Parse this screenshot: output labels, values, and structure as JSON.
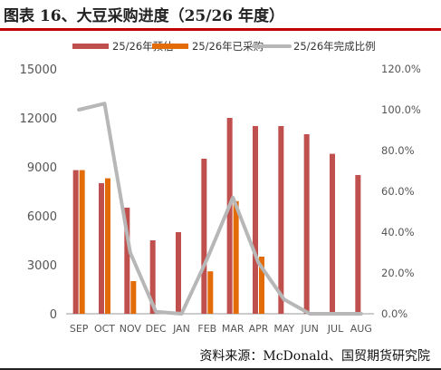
{
  "title": "图表 16、大豆采购进度（25/26 年度）",
  "source": "资料来源：McDonald、国贸期货研究院",
  "chart_data": {
    "type": "bar",
    "categories": [
      "SEP",
      "OCT",
      "NOV",
      "DEC",
      "JAN",
      "FEB",
      "MAR",
      "APR",
      "MAY",
      "JUN",
      "JUL",
      "AUG"
    ],
    "series": [
      {
        "name": "25/26年预估",
        "type": "bar",
        "axis": "left",
        "color": "#c0504d",
        "values": [
          8800,
          8000,
          6500,
          4500,
          5000,
          9500,
          12000,
          11500,
          11500,
          11000,
          9800,
          8500
        ]
      },
      {
        "name": "25/26年已采购",
        "type": "bar",
        "axis": "left",
        "color": "#e36c09",
        "values": [
          8800,
          8300,
          2000,
          0,
          0,
          2600,
          6900,
          3500,
          0,
          0,
          0,
          0
        ]
      },
      {
        "name": "25/26年完成比例",
        "type": "line",
        "axis": "right",
        "color": "#b7b7b7",
        "values": [
          1.0,
          1.03,
          0.3,
          0.01,
          0.0,
          0.27,
          0.57,
          0.25,
          0.07,
          0.0,
          0.0,
          0.0
        ]
      }
    ],
    "y_left": {
      "min": 0,
      "max": 15000,
      "ticks": [
        "0",
        "3000",
        "6000",
        "9000",
        "12000",
        "15000"
      ]
    },
    "y_right": {
      "min": 0,
      "max": 1.2,
      "ticks": [
        "0.0%",
        "20.0%",
        "40.0%",
        "60.0%",
        "80.0%",
        "100.0%",
        "120.0%"
      ]
    },
    "legend_position": "top",
    "grid": false
  }
}
